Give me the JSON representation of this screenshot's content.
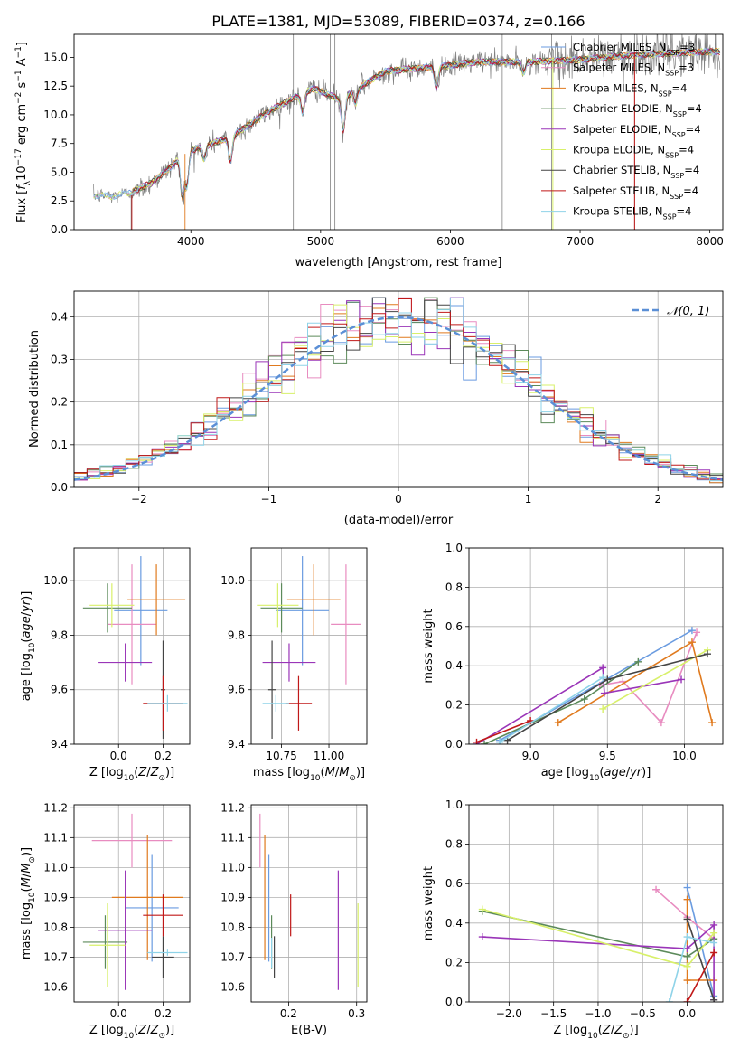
{
  "figure_title": "PLATE=1381, MJD=53089, FIBERID=0374, z=0.166",
  "model_colors": {
    "Chabrier MILES": "#6a9be0",
    "Salpeter MILES": "#e88cc0",
    "Kroupa MILES": "#e07a1e",
    "Chabrier ELODIE": "#5c8a5a",
    "Salpeter ELODIE": "#9a35b8",
    "Kroupa ELODIE": "#d8f06a",
    "Chabrier STELIB": "#444444",
    "Salpeter STELIB": "#c01818",
    "Kroupa STELIB": "#8fd3e8",
    "data": "#808080"
  },
  "chart_data": [
    {
      "id": "spectrum",
      "type": "line",
      "title": "PLATE=1381, MJD=53089, FIBERID=0374, z=0.166",
      "xlabel": "wavelength [Angstrom, rest frame]",
      "ylabel": "Flux [f_λ 10^-17 erg cm^-2 s^-1 A^-1]",
      "xlim": [
        3100,
        8100
      ],
      "ylim": [
        0,
        17
      ],
      "xticks": [
        "4000",
        "5000",
        "6000",
        "7000",
        "8000"
      ],
      "yticks": [
        "0.0",
        "2.5",
        "5.0",
        "7.5",
        "10.0",
        "12.5",
        "15.0"
      ],
      "grid": false,
      "legend_position": "top-right",
      "legend": [
        {
          "label": "Chabrier MILES, N",
          "sub": "SSP",
          "suffix": "=3",
          "model": "Chabrier MILES"
        },
        {
          "label": "Salpeter MILES, N",
          "sub": "SSP",
          "suffix": "=3",
          "model": "Salpeter MILES"
        },
        {
          "label": "Kroupa MILES, N",
          "sub": "SSP",
          "suffix": "=4",
          "model": "Kroupa MILES"
        },
        {
          "label": "Chabrier ELODIE, N",
          "sub": "SSP",
          "suffix": "=4",
          "model": "Chabrier ELODIE"
        },
        {
          "label": "Salpeter ELODIE, N",
          "sub": "SSP",
          "suffix": "=4",
          "model": "Salpeter ELODIE"
        },
        {
          "label": "Kroupa ELODIE, N",
          "sub": "SSP",
          "suffix": "=4",
          "model": "Kroupa ELODIE"
        },
        {
          "label": "Chabrier STELIB, N",
          "sub": "SSP",
          "suffix": "=4",
          "model": "Chabrier STELIB"
        },
        {
          "label": "Salpeter STELIB, N",
          "sub": "SSP",
          "suffix": "=4",
          "model": "Salpeter STELIB"
        },
        {
          "label": "Kroupa STELIB, N",
          "sub": "SSP",
          "suffix": "=4",
          "model": "Kroupa STELIB"
        }
      ],
      "continuum": {
        "x": [
          3250,
          3400,
          3550,
          3700,
          3850,
          3950,
          4050,
          4300,
          4600,
          4850,
          4950,
          5150,
          5500,
          6000,
          6200,
          6600,
          7000,
          7400,
          8000
        ],
        "y": [
          3.0,
          2.9,
          3.3,
          4.1,
          5.5,
          6.7,
          7.1,
          8.0,
          10.3,
          11.8,
          12.3,
          11.3,
          13.8,
          14.3,
          14.6,
          14.6,
          14.8,
          15.2,
          15.5
        ]
      },
      "absorption_features": [
        {
          "x": 3934,
          "depth": 3.5
        },
        {
          "x": 3969,
          "depth": 3.0
        },
        {
          "x": 4102,
          "depth": 1.2
        },
        {
          "x": 4305,
          "depth": 2.0
        },
        {
          "x": 4861,
          "depth": 1.6
        },
        {
          "x": 5175,
          "depth": 2.8
        },
        {
          "x": 5270,
          "depth": 1.2
        },
        {
          "x": 5892,
          "depth": 1.8
        },
        {
          "x": 6563,
          "depth": 1.0
        }
      ],
      "data_vertical_lines": [
        {
          "x": 3540,
          "y0": 0,
          "y1": 3.0
        },
        {
          "x": 4790,
          "y0": 0,
          "y1": 17
        },
        {
          "x": 5075,
          "y0": 0,
          "y1": 17
        },
        {
          "x": 5110,
          "y0": 0,
          "y1": 17
        },
        {
          "x": 6400,
          "y0": 0,
          "y1": 17
        },
        {
          "x": 6780,
          "y0": 0,
          "y1": 17
        },
        {
          "x": 7420,
          "y0": 0,
          "y1": 17
        }
      ]
    },
    {
      "id": "residuals",
      "type": "histogram",
      "xlabel": "(data-model)/error",
      "ylabel": "Normed distribution",
      "xlim": [
        -2.5,
        2.5
      ],
      "ylim": [
        0,
        0.46
      ],
      "xticks": [
        -2,
        -1,
        0,
        1,
        2
      ],
      "yticks": [
        "0.0",
        "0.1",
        "0.2",
        "0.3",
        "0.4"
      ],
      "grid": true,
      "legend_position": "top-right",
      "legend": [
        {
          "label": "𝒩(0, 1)",
          "style": "dashed",
          "color": "#5b8fd6"
        }
      ],
      "bin_edges_start": -2.5,
      "bin_width": 0.1,
      "gaussian": {
        "mu": 0,
        "sigma": 1
      }
    },
    {
      "id": "age_vs_Z",
      "type": "errorbar",
      "xlabel": "Z [log10(Z/Z⊙)]",
      "ylabel": "age [log10(age/yr)]",
      "xlim": [
        -0.2,
        0.32
      ],
      "ylim": [
        9.4,
        10.12
      ],
      "xticks": [
        "0.0",
        "0.2"
      ],
      "yticks": [
        "9.4",
        "9.6",
        "9.8",
        "10.0"
      ],
      "grid": true,
      "points": [
        {
          "model": "Chabrier MILES",
          "x": 0.1,
          "xerr": 0.12,
          "y": 9.89,
          "yerr": 0.2
        },
        {
          "model": "Salpeter MILES",
          "x": 0.06,
          "xerr": 0.11,
          "y": 9.84,
          "yerr": 0.22
        },
        {
          "model": "Kroupa MILES",
          "x": 0.17,
          "xerr": 0.13,
          "y": 9.93,
          "yerr": 0.13
        },
        {
          "model": "Chabrier ELODIE",
          "x": -0.05,
          "xerr": 0.11,
          "y": 9.9,
          "yerr": 0.09
        },
        {
          "model": "Salpeter ELODIE",
          "x": 0.03,
          "xerr": 0.12,
          "y": 9.7,
          "yerr": 0.07
        },
        {
          "model": "Kroupa ELODIE",
          "x": -0.03,
          "xerr": 0.1,
          "y": 9.91,
          "yerr": 0.08
        },
        {
          "model": "Chabrier STELIB",
          "x": 0.2,
          "xerr": 0.01,
          "y": 9.6,
          "yerr": 0.18
        },
        {
          "model": "Salpeter STELIB",
          "x": 0.2,
          "xerr": 0.09,
          "y": 9.55,
          "yerr": 0.1
        },
        {
          "model": "Kroupa STELIB",
          "x": 0.22,
          "xerr": 0.09,
          "y": 9.55,
          "yerr": 0.03
        }
      ]
    },
    {
      "id": "age_vs_mass",
      "type": "errorbar",
      "xlabel": "mass [log10(M/M⊙)]",
      "ylabel": "",
      "xlim": [
        10.59,
        11.2
      ],
      "ylim": [
        9.4,
        10.12
      ],
      "xticks": [
        "10.75",
        "11.00"
      ],
      "yticks": [
        "9.4",
        "9.6",
        "9.8",
        "10.0"
      ],
      "grid": true,
      "points": [
        {
          "model": "Chabrier MILES",
          "x": 10.86,
          "xerr": 0.14,
          "y": 9.89,
          "yerr": 0.2
        },
        {
          "model": "Salpeter MILES",
          "x": 11.09,
          "xerr": 0.08,
          "y": 9.84,
          "yerr": 0.22
        },
        {
          "model": "Kroupa MILES",
          "x": 10.92,
          "xerr": 0.14,
          "y": 9.93,
          "yerr": 0.13
        },
        {
          "model": "Chabrier ELODIE",
          "x": 10.75,
          "xerr": 0.11,
          "y": 9.9,
          "yerr": 0.09
        },
        {
          "model": "Salpeter ELODIE",
          "x": 10.79,
          "xerr": 0.14,
          "y": 9.7,
          "yerr": 0.07
        },
        {
          "model": "Kroupa ELODIE",
          "x": 10.73,
          "xerr": 0.11,
          "y": 9.91,
          "yerr": 0.08
        },
        {
          "model": "Chabrier STELIB",
          "x": 10.7,
          "xerr": 0.02,
          "y": 9.6,
          "yerr": 0.18
        },
        {
          "model": "Salpeter STELIB",
          "x": 10.84,
          "xerr": 0.07,
          "y": 9.55,
          "yerr": 0.1
        },
        {
          "model": "Kroupa STELIB",
          "x": 10.72,
          "xerr": 0.07,
          "y": 9.55,
          "yerr": 0.03
        }
      ]
    },
    {
      "id": "mass_vs_Z",
      "type": "errorbar",
      "xlabel": "Z [log10(Z/Z⊙)]",
      "ylabel": "mass [log10(M/M⊙)]",
      "xlim": [
        -0.2,
        0.32
      ],
      "ylim": [
        10.55,
        11.21
      ],
      "xticks": [
        "0.0",
        "0.2"
      ],
      "yticks": [
        "10.6",
        "10.7",
        "10.8",
        "10.9",
        "11.0",
        "11.1",
        "11.2"
      ],
      "grid": true,
      "points": [
        {
          "model": "Chabrier MILES",
          "x": 0.15,
          "xerr": 0.12,
          "y": 10.865,
          "yerr": 0.18
        },
        {
          "model": "Salpeter MILES",
          "x": 0.06,
          "xerr": 0.18,
          "y": 11.09,
          "yerr": 0.09
        },
        {
          "model": "Kroupa MILES",
          "x": 0.13,
          "xerr": 0.16,
          "y": 10.9,
          "yerr": 0.21
        },
        {
          "model": "Chabrier ELODIE",
          "x": -0.06,
          "xerr": 0.1,
          "y": 10.75,
          "yerr": 0.09
        },
        {
          "model": "Salpeter ELODIE",
          "x": 0.03,
          "xerr": 0.12,
          "y": 10.79,
          "yerr": 0.2
        },
        {
          "model": "Kroupa ELODIE",
          "x": -0.05,
          "xerr": 0.08,
          "y": 10.74,
          "yerr": 0.14
        },
        {
          "model": "Chabrier STELIB",
          "x": 0.2,
          "xerr": 0.05,
          "y": 10.7,
          "yerr": 0.07
        },
        {
          "model": "Salpeter STELIB",
          "x": 0.2,
          "xerr": 0.09,
          "y": 10.84,
          "yerr": 0.07
        },
        {
          "model": "Kroupa STELIB",
          "x": 0.22,
          "xerr": 0.09,
          "y": 10.715,
          "yerr": 0.01
        }
      ]
    },
    {
      "id": "mass_vs_ebv",
      "type": "errorbar",
      "xlabel": "E(B-V)",
      "ylabel": "",
      "xlim": [
        0.145,
        0.315
      ],
      "ylim": [
        10.55,
        11.21
      ],
      "xticks": [
        "0.2",
        "0.3"
      ],
      "yticks": [
        "10.6",
        "10.7",
        "10.8",
        "10.9",
        "11.0",
        "11.1",
        "11.2"
      ],
      "grid": true,
      "points": [
        {
          "model": "Chabrier MILES",
          "x": 0.171,
          "xerr": 0,
          "y": 10.865,
          "yerr": 0.18
        },
        {
          "model": "Salpeter MILES",
          "x": 0.158,
          "xerr": 0,
          "y": 11.09,
          "yerr": 0.09
        },
        {
          "model": "Kroupa MILES",
          "x": 0.165,
          "xerr": 0,
          "y": 10.9,
          "yerr": 0.21
        },
        {
          "model": "Chabrier ELODIE",
          "x": 0.175,
          "xerr": 0,
          "y": 10.75,
          "yerr": 0.09
        },
        {
          "model": "Salpeter ELODIE",
          "x": 0.273,
          "xerr": 0,
          "y": 10.79,
          "yerr": 0.2
        },
        {
          "model": "Kroupa ELODIE",
          "x": 0.302,
          "xerr": 0,
          "y": 10.74,
          "yerr": 0.14
        },
        {
          "model": "Chabrier STELIB",
          "x": 0.179,
          "xerr": 0,
          "y": 10.7,
          "yerr": 0.07
        },
        {
          "model": "Salpeter STELIB",
          "x": 0.203,
          "xerr": 0,
          "y": 10.84,
          "yerr": 0.07
        },
        {
          "model": "Kroupa STELIB",
          "x": 0.175,
          "xerr": 0,
          "y": 10.715,
          "yerr": 0.05
        }
      ]
    },
    {
      "id": "weight_vs_age",
      "type": "line",
      "xlabel": "age [log10(age/yr)]",
      "ylabel": "mass weight",
      "xlim": [
        8.6,
        10.25
      ],
      "ylim": [
        0,
        1
      ],
      "xticks": [
        "9.0",
        "9.5",
        "10.0"
      ],
      "yticks": [
        "0.0",
        "0.2",
        "0.4",
        "0.6",
        "0.8",
        "1.0"
      ],
      "grid": true,
      "series": [
        {
          "model": "Chabrier MILES",
          "x": [
            8.8,
            10.05
          ],
          "y": [
            0.02,
            0.58
          ]
        },
        {
          "model": "Salpeter MILES",
          "x": [
            9.45,
            9.6,
            9.85,
            10.08
          ],
          "y": [
            0.3,
            0.32,
            0.11,
            0.57
          ]
        },
        {
          "model": "Kroupa MILES",
          "x": [
            9.18,
            10.05,
            10.18
          ],
          "y": [
            0.11,
            0.52,
            0.11
          ]
        },
        {
          "model": "Chabrier ELODIE",
          "x": [
            8.7,
            9.35,
            9.7
          ],
          "y": [
            0.0,
            0.23,
            0.42
          ]
        },
        {
          "model": "Salpeter ELODIE",
          "x": [
            8.65,
            9.47,
            9.48,
            9.98
          ],
          "y": [
            0.0,
            0.39,
            0.26,
            0.33
          ]
        },
        {
          "model": "Kroupa ELODIE",
          "x": [
            9.47,
            10.15
          ],
          "y": [
            0.18,
            0.48
          ]
        },
        {
          "model": "Chabrier STELIB",
          "x": [
            8.85,
            9.5,
            10.15
          ],
          "y": [
            0.02,
            0.33,
            0.46
          ]
        },
        {
          "model": "Salpeter STELIB",
          "x": [
            8.65,
            9.0
          ],
          "y": [
            0.01,
            0.12
          ]
        },
        {
          "model": "Kroupa STELIB",
          "x": [
            8.8,
            9.47
          ],
          "y": [
            0.01,
            0.34
          ]
        }
      ]
    },
    {
      "id": "weight_vs_Z",
      "type": "line",
      "xlabel": "Z [log10(Z/Z⊙)]",
      "ylabel": "mass weight",
      "xlim": [
        -2.45,
        0.4
      ],
      "ylim": [
        0,
        1
      ],
      "xticks": [
        "−2.0",
        "−1.5",
        "−1.0",
        "−0.5",
        "0.0"
      ],
      "yticks": [
        "0.0",
        "0.2",
        "0.4",
        "0.6",
        "0.8",
        "1.0"
      ],
      "grid": true,
      "series": [
        {
          "model": "Chabrier MILES",
          "x": [
            0.0,
            0.3
          ],
          "y": [
            0.58,
            0.03
          ]
        },
        {
          "model": "Salpeter MILES",
          "x": [
            -0.35,
            0.0,
            0.3
          ],
          "y": [
            0.57,
            0.43,
            0.32
          ]
        },
        {
          "model": "Kroupa MILES",
          "x": [
            0.0,
            0.0,
            0.3
          ],
          "y": [
            0.52,
            0.11,
            0.11
          ]
        },
        {
          "model": "Chabrier ELODIE",
          "x": [
            -2.3,
            0.0,
            0.3
          ],
          "y": [
            0.46,
            0.23,
            0.32
          ]
        },
        {
          "model": "Salpeter ELODIE",
          "x": [
            -2.3,
            0.0,
            0.3,
            0.3
          ],
          "y": [
            0.33,
            0.27,
            0.39,
            0.01
          ]
        },
        {
          "model": "Kroupa ELODIE",
          "x": [
            -2.3,
            0.0,
            0.3
          ],
          "y": [
            0.47,
            0.18,
            0.35
          ]
        },
        {
          "model": "Chabrier STELIB",
          "x": [
            0.0,
            0.3
          ],
          "y": [
            0.42,
            0.01
          ]
        },
        {
          "model": "Salpeter STELIB",
          "x": [
            0.0,
            0.3
          ],
          "y": [
            0.0,
            0.25
          ]
        },
        {
          "model": "Kroupa STELIB",
          "x": [
            -0.2,
            0.0,
            0.3
          ],
          "y": [
            0.0,
            0.33,
            0.3
          ]
        }
      ]
    }
  ]
}
